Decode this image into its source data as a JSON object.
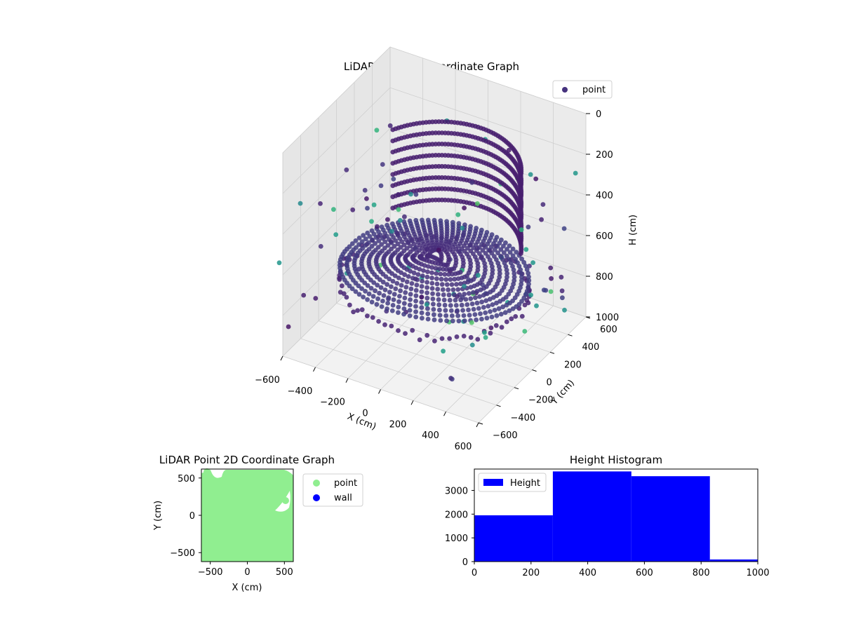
{
  "chart_data": [
    {
      "type": "scatter",
      "projection": "3d",
      "title": "LiDAR Point 3D Coordinate Graph",
      "xlabel": "X (cm)",
      "ylabel": "Y (cm)",
      "zlabel": "H (cm)",
      "x_ticks": [
        "−600",
        "−400",
        "−200",
        "0",
        "200",
        "400",
        "600"
      ],
      "y_ticks": [
        "−600",
        "−400",
        "−200",
        "0",
        "200",
        "400",
        "600"
      ],
      "z_ticks": [
        "0",
        "200",
        "400",
        "600",
        "800",
        "1000"
      ],
      "xlim": [
        -600,
        600
      ],
      "ylim": [
        -600,
        600
      ],
      "zlim": [
        0,
        1000
      ],
      "z_inverted": true,
      "colormap": "viridis",
      "legend": {
        "position": "top-right",
        "entries": [
          {
            "label": "point",
            "color": "#46327e"
          }
        ]
      },
      "series": [
        {
          "name": "point",
          "description_points": [
            {
              "x": 0,
              "y": 0,
              "z": 700
            },
            {
              "x": 200,
              "y": 100,
              "z": 720
            },
            {
              "x": -200,
              "y": -100,
              "z": 700
            },
            {
              "x": 400,
              "y": 0,
              "z": 700
            },
            {
              "x": -400,
              "y": 0,
              "z": 700
            },
            {
              "x": 0,
              "y": 400,
              "z": 700
            },
            {
              "x": 0,
              "y": -400,
              "z": 700
            },
            {
              "x": 300,
              "y": 300,
              "z": 200
            },
            {
              "x": -300,
              "y": 300,
              "z": 250
            },
            {
              "x": 450,
              "y": -300,
              "z": 350
            },
            {
              "x": -450,
              "y": -300,
              "z": 400
            },
            {
              "x": 500,
              "y": 500,
              "z": 600
            },
            {
              "x": -600,
              "y": 400,
              "z": 650
            },
            {
              "x": 600,
              "y": -500,
              "z": 800
            },
            {
              "x": -550,
              "y": -550,
              "z": 750
            }
          ]
        }
      ]
    },
    {
      "type": "scatter",
      "title": "LiDAR Point 2D Coordinate Graph",
      "xlabel": "X (cm)",
      "ylabel": "Y (cm)",
      "x_ticks": [
        "−500",
        "0",
        "500"
      ],
      "y_ticks": [
        "500",
        "0",
        "−500"
      ],
      "xlim": [
        -620,
        620
      ],
      "ylim": [
        -620,
        620
      ],
      "legend": {
        "position": "right",
        "entries": [
          {
            "label": "point",
            "color": "#90ee90"
          },
          {
            "label": "wall",
            "color": "#0000ff"
          }
        ]
      }
    },
    {
      "type": "bar",
      "title": "Height Histogram",
      "xlim": [
        0,
        1000
      ],
      "ylim": [
        0,
        3900
      ],
      "x_ticks": [
        "0",
        "200",
        "400",
        "600",
        "800",
        "1000"
      ],
      "y_ticks": [
        "0",
        "1000",
        "2000",
        "3000"
      ],
      "bin_edges": [
        0,
        277,
        554,
        831,
        1108
      ],
      "values": [
        1950,
        3800,
        3600,
        90
      ],
      "color": "#0000ff",
      "legend": {
        "position": "top-left",
        "entries": [
          {
            "label": "Height",
            "color": "#0000ff"
          }
        ]
      }
    }
  ]
}
